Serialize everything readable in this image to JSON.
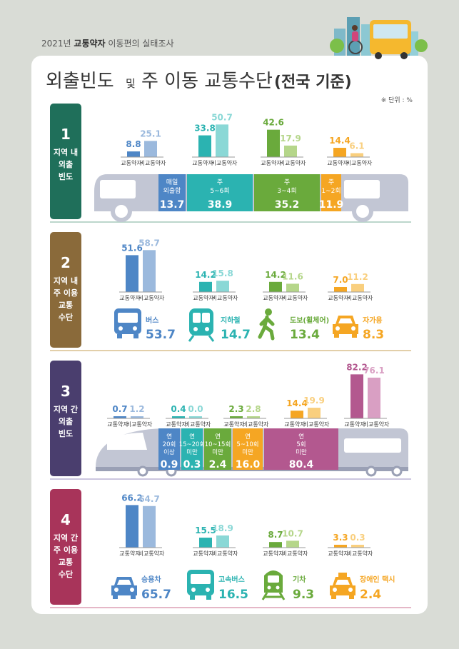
{
  "header": {
    "survey_prefix": "2021년",
    "survey_bold": "교통약자",
    "survey_suffix": "이동편의 실태조사",
    "title_main": "외출빈도",
    "title_and": "및",
    "title_mid": "주 이동 교통수단",
    "title_bold": "(전국 기준)",
    "unit_note": "※ 단위 : %"
  },
  "colors": {
    "s1": "#1f6f5a",
    "s2": "#8a6a3a",
    "s3": "#4a3e6e",
    "s4": "#a8345a",
    "blue": "#4e86c6",
    "blue_light": "#9bb9dd",
    "teal": "#2bb3b1",
    "teal_light": "#8ad8d6",
    "green": "#6aaa3c",
    "green_light": "#b5d68a",
    "orange": "#f5a623",
    "orange_light": "#f9cf7e",
    "pink": "#b3588f",
    "pink_light": "#d99fc3",
    "gray_vehicle": "#c2c6d4"
  },
  "legend_labels": {
    "disabled": "교통약자",
    "non_disabled": "비교통약자"
  },
  "sections": [
    {
      "num": "1",
      "label": [
        "지역 내",
        "외출",
        "빈도"
      ]
    },
    {
      "num": "2",
      "label": [
        "지역 내",
        "주 이용",
        "교통",
        "수단"
      ]
    },
    {
      "num": "3",
      "label": [
        "지역 간",
        "외출",
        "빈도"
      ]
    },
    {
      "num": "4",
      "label": [
        "지역 간",
        "주 이용",
        "교통",
        "수단"
      ]
    }
  ],
  "chart_data": [
    {
      "type": "bar",
      "section": "1",
      "categories": [
        "매일 외출함",
        "주 5~6회",
        "주 3~4회",
        "주 1~2회"
      ],
      "category_lines": [
        [
          "매일",
          "외출함"
        ],
        [
          "주",
          "5~6회"
        ],
        [
          "주",
          "3~4회"
        ],
        [
          "주",
          "1~2회"
        ]
      ],
      "series": [
        {
          "name": "교통약자",
          "values": [
            8.8,
            33.8,
            42.6,
            14.4
          ]
        },
        {
          "name": "비교통약자",
          "values": [
            25.1,
            50.7,
            17.9,
            6.1
          ]
        }
      ],
      "totals": [
        13.7,
        38.9,
        35.2,
        11.9
      ],
      "total_labels": [
        "13.7",
        "38.9",
        "35.2",
        "11.9"
      ],
      "value_labels": [
        [
          "8.8",
          "33.8",
          "42.6",
          "14.4"
        ],
        [
          "25.1",
          "50.7",
          "17.9",
          "6.1"
        ]
      ]
    },
    {
      "type": "bar",
      "section": "2",
      "categories": [
        "버스",
        "지하철",
        "도보(휠체어)",
        "자가용"
      ],
      "series": [
        {
          "name": "교통약자",
          "values": [
            51.6,
            14.2,
            14.2,
            7.0
          ]
        },
        {
          "name": "비교통약자",
          "values": [
            58.7,
            15.8,
            11.6,
            11.2
          ]
        }
      ],
      "totals": [
        53.7,
        14.7,
        13.4,
        8.3
      ],
      "total_labels": [
        "53.7",
        "14.7",
        "13.4",
        "8.3"
      ],
      "value_labels": [
        [
          "51.6",
          "14.2",
          "14.2",
          "7.0"
        ],
        [
          "58.7",
          "15.8",
          "11.6",
          "11.2"
        ]
      ]
    },
    {
      "type": "bar",
      "section": "3",
      "categories": [
        "연 20회 이상",
        "연 15~20회 미만",
        "연 10~15회 미만",
        "연 5~10회 미만",
        "연 5회 미만"
      ],
      "category_lines": [
        [
          "연",
          "20회",
          "이상"
        ],
        [
          "연",
          "15~20회",
          "미만"
        ],
        [
          "연",
          "10~15회",
          "미만"
        ],
        [
          "연",
          "5~10회",
          "미만"
        ],
        [
          "연",
          "5회",
          "미만"
        ]
      ],
      "series": [
        {
          "name": "교통약자",
          "values": [
            0.7,
            0.4,
            2.3,
            14.4,
            82.2
          ]
        },
        {
          "name": "비교통약자",
          "values": [
            1.2,
            0.0,
            2.8,
            19.9,
            76.1
          ]
        }
      ],
      "totals": [
        0.9,
        0.3,
        2.4,
        16.0,
        80.4
      ],
      "total_labels": [
        "0.9",
        "0.3",
        "2.4",
        "16.0",
        "80.4"
      ],
      "value_labels": [
        [
          "0.7",
          "0.4",
          "2.3",
          "14.4",
          "82.2"
        ],
        [
          "1.2",
          "0.0",
          "2.8",
          "19.9",
          "76.1"
        ]
      ]
    },
    {
      "type": "bar",
      "section": "4",
      "categories": [
        "승용차",
        "고속버스",
        "기차",
        "장애인 택시"
      ],
      "series": [
        {
          "name": "교통약자",
          "values": [
            66.2,
            15.5,
            8.7,
            3.3
          ]
        },
        {
          "name": "비교통약자",
          "values": [
            64.7,
            18.9,
            10.7,
            0.3
          ]
        }
      ],
      "totals": [
        65.7,
        16.5,
        9.3,
        2.4
      ],
      "total_labels": [
        "65.7",
        "16.5",
        "9.3",
        "2.4"
      ],
      "value_labels": [
        [
          "66.2",
          "15.5",
          "8.7",
          "3.3"
        ],
        [
          "64.7",
          "18.9",
          "10.7",
          "0.3"
        ]
      ]
    }
  ],
  "icons": {
    "s2": [
      "bus-icon",
      "subway-icon",
      "walking-person-icon",
      "car-icon"
    ],
    "s4": [
      "car-icon",
      "express-bus-icon",
      "train-icon",
      "taxi-icon"
    ],
    "s1_vehicle": "bus-side-icon",
    "s3_vehicle": "ktx-train-icon",
    "header_art": "city-bus-wheelchair-illustration"
  }
}
